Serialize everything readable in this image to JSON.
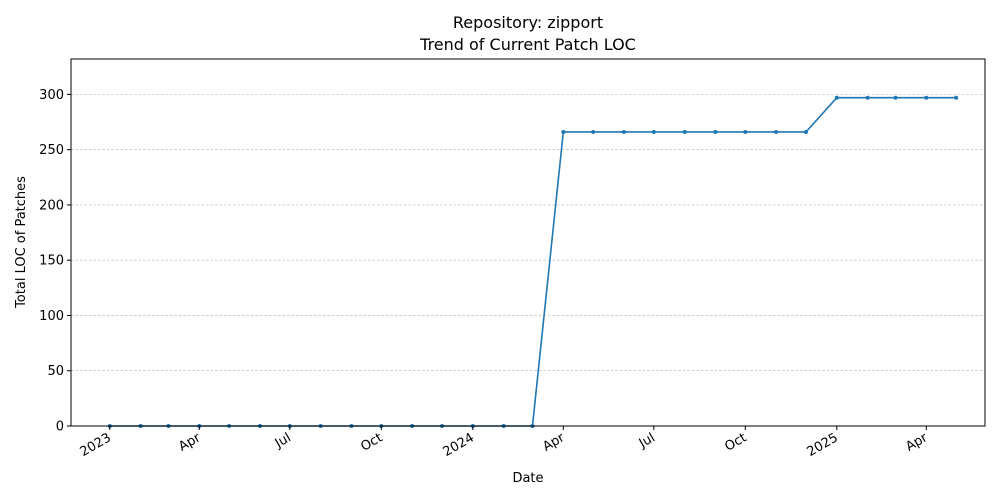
{
  "chart_data": {
    "type": "line",
    "title": "Repository: zipport",
    "subtitle": "Trend of Current Patch LOC",
    "xlabel": "Date",
    "ylabel": "Total LOC of Patches",
    "ylim": [
      0,
      332
    ],
    "xlim": [
      "2022-11-23",
      "2025-05-30"
    ],
    "grid": "y-dashed",
    "x_ticks": [
      {
        "date": "2023-01-01",
        "label": "2023"
      },
      {
        "date": "2023-04-01",
        "label": "Apr"
      },
      {
        "date": "2023-07-01",
        "label": "Jul"
      },
      {
        "date": "2023-10-01",
        "label": "Oct"
      },
      {
        "date": "2024-01-01",
        "label": "2024"
      },
      {
        "date": "2024-04-01",
        "label": "Apr"
      },
      {
        "date": "2024-07-01",
        "label": "Jul"
      },
      {
        "date": "2024-10-01",
        "label": "Oct"
      },
      {
        "date": "2025-01-01",
        "label": "2025"
      },
      {
        "date": "2025-04-01",
        "label": "Apr"
      }
    ],
    "y_ticks": [
      0,
      50,
      100,
      150,
      200,
      250,
      300
    ],
    "series": [
      {
        "color": "#1f77b4",
        "x": [
          "2023-01-01",
          "2023-02-01",
          "2023-03-01",
          "2023-04-01",
          "2023-05-01",
          "2023-06-01",
          "2023-07-01",
          "2023-08-01",
          "2023-09-01",
          "2023-10-01",
          "2023-11-01",
          "2023-12-01",
          "2024-01-01",
          "2024-02-01",
          "2024-03-01",
          "2024-04-01",
          "2024-05-01",
          "2024-06-01",
          "2024-07-01",
          "2024-08-01",
          "2024-09-01",
          "2024-10-01",
          "2024-11-01",
          "2024-12-01",
          "2025-01-01",
          "2025-02-01",
          "2025-03-01",
          "2025-04-01",
          "2025-05-01"
        ],
        "values": [
          0,
          0,
          0,
          0,
          0,
          0,
          0,
          0,
          0,
          0,
          0,
          0,
          0,
          0,
          0,
          266,
          266,
          266,
          266,
          266,
          266,
          266,
          266,
          266,
          297,
          297,
          297,
          297,
          297
        ]
      }
    ]
  }
}
